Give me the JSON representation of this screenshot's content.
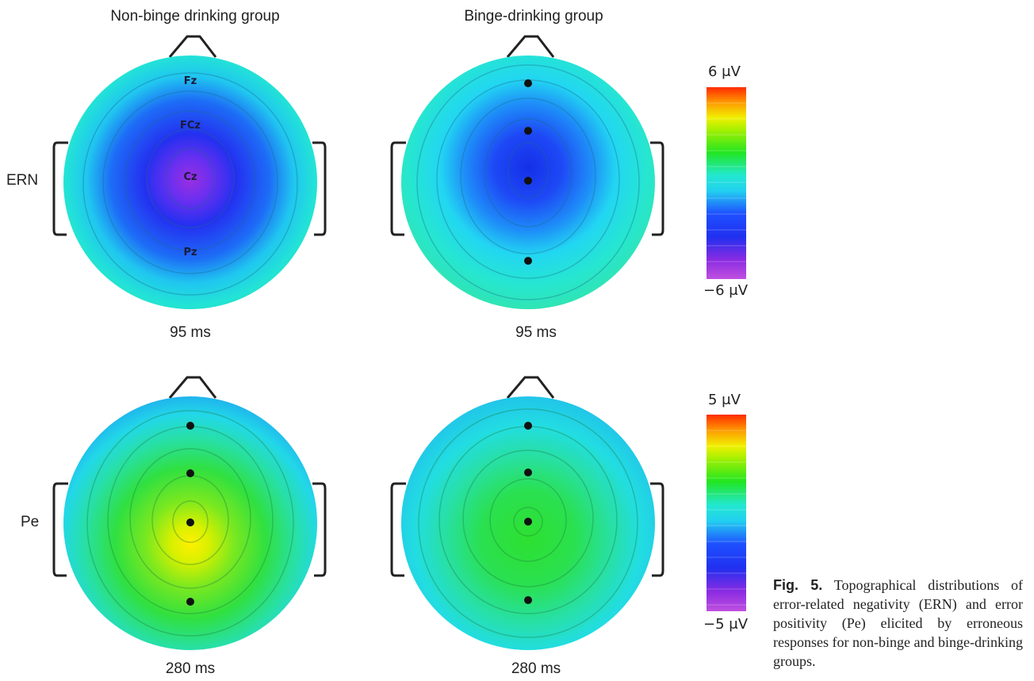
{
  "columns": {
    "non_binge": "Non-binge drinking group",
    "binge": "Binge-drinking group"
  },
  "rows": {
    "ern": "ERN",
    "pe": "Pe"
  },
  "times": {
    "ern_non_binge": "95 ms",
    "ern_binge": "95 ms",
    "pe_non_binge": "280 ms",
    "pe_binge": "280 ms"
  },
  "electrodes": {
    "fz": "Fz",
    "fcz": "FCz",
    "cz": "Cz",
    "pz": "Pz"
  },
  "colorbars": {
    "ern": {
      "max_label": "6 μV",
      "min_label": "−6 μV",
      "max_value": 6,
      "min_value": -6
    },
    "pe": {
      "max_label": "5 μV",
      "min_label": "−5 μV",
      "max_value": 5,
      "min_value": -5
    }
  },
  "caption": {
    "fig_label": "Fig. 5.",
    "text": "Topographical distributions of error-related negativity (ERN) and error positivity (Pe) elicited by erroneous responses for non-binge and binge-drinking groups."
  },
  "colors": {
    "background": "#ffffff",
    "dark_violet": "#8a2be2",
    "blue": "#1e3cff",
    "cyan": "#22e0e8",
    "green": "#22e620",
    "yellow": "#f0f000",
    "red": "#ff2a00"
  }
}
